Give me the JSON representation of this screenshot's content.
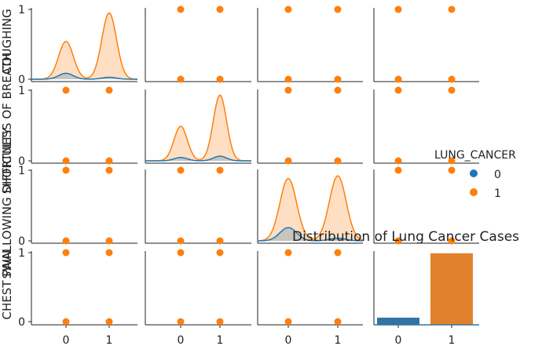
{
  "chart_data": {
    "type": "pairplot",
    "variables": [
      "COUGHING",
      "SHORTNESS OF BREATH",
      "SWALLOWING DIFFICULTY",
      "CHEST PAIN"
    ],
    "ylabels_overlap": [
      "COUGHING",
      "SHORTNESS OF BREATH",
      "SWALLOWING DIFFICULTY",
      "CHEST PAIN"
    ],
    "tick_values": [
      0,
      1
    ],
    "tick_labels": [
      "0",
      "1"
    ],
    "hue_variable": "LUNG_CANCER",
    "hue_levels": [
      {
        "label": "0",
        "color": "#1f77b4"
      },
      {
        "label": "1",
        "color": "#ff7f0e"
      }
    ],
    "legend": {
      "title": "LUNG_CANCER",
      "placement": "right"
    },
    "scatter_points": [
      [
        0,
        0
      ],
      [
        0,
        1
      ],
      [
        1,
        0
      ],
      [
        1,
        1
      ]
    ],
    "kde_peaks": {
      "COUGHING": {
        "hue_0": [
          0.09,
          0.03
        ],
        "hue_1": [
          0.57,
          1.0
        ]
      },
      "SHORTNESS OF BREATH": {
        "hue_0": [
          0.05,
          0.07
        ],
        "hue_1": [
          0.52,
          0.99
        ]
      },
      "SWALLOWING DIFFICULTY": {
        "hue_0": [
          0.2,
          0.04
        ],
        "hue_1": [
          0.94,
          0.98
        ]
      }
    },
    "bar_overlay": {
      "title": "Distribution of Lung Cancer Cases",
      "categories": [
        "0",
        "1"
      ],
      "values": [
        0.1,
        1.0
      ],
      "colors": [
        "#3274a1",
        "#e1812c"
      ]
    }
  }
}
